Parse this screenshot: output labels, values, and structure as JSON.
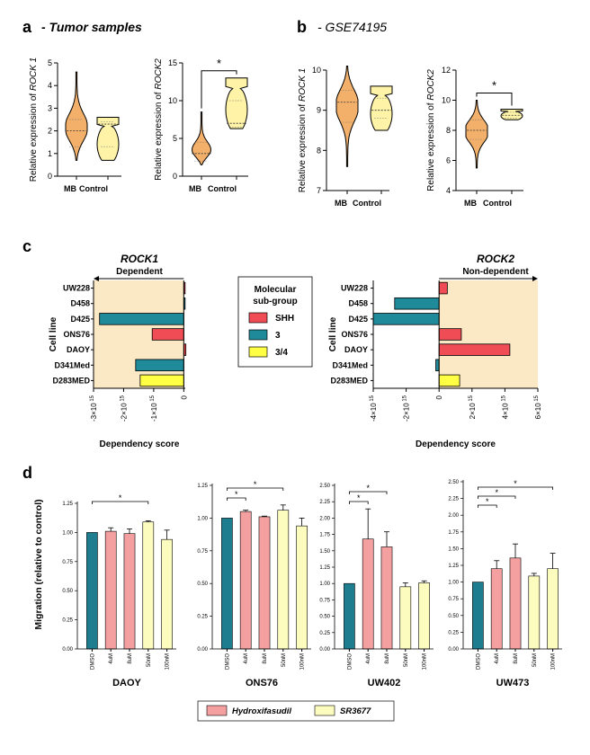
{
  "panels": {
    "a": {
      "letter": "a",
      "title": "- Tumor samples"
    },
    "b": {
      "letter": "b",
      "title": "- GSE74195"
    },
    "c": {
      "letter": "c"
    },
    "d": {
      "letter": "d"
    }
  },
  "chart_data": [
    {
      "id": "a1",
      "type": "violin",
      "ylabel_plain": "Relative expression of ",
      "ylabel_italic": "ROCK 1",
      "ylim": [
        0,
        5
      ],
      "yticks": [
        0,
        1,
        2,
        3,
        4,
        5
      ],
      "categories": [
        "MB",
        "Control"
      ],
      "series": [
        {
          "name": "MB",
          "color": "#f2b06b",
          "min": 0.7,
          "max": 4.6,
          "median": 2.0,
          "q1": 1.3,
          "q3": 2.5
        },
        {
          "name": "Control",
          "color": "#fff3a8",
          "min": 0.7,
          "max": 2.6,
          "median": 2.3,
          "q1": 1.3,
          "q3": 2.4
        }
      ]
    },
    {
      "id": "a2",
      "type": "violin",
      "ylabel_plain": "Relative expression of ",
      "ylabel_italic": "ROCK2",
      "ylim": [
        0,
        15
      ],
      "yticks": [
        0,
        5,
        10,
        15
      ],
      "categories": [
        "MB",
        "Control"
      ],
      "series": [
        {
          "name": "MB",
          "color": "#f2b06b",
          "min": 1.5,
          "max": 8.5,
          "median": 3.0,
          "q1": 2.0,
          "q3": 4.5
        },
        {
          "name": "Control",
          "color": "#fff3a8",
          "min": 6.3,
          "max": 13.0,
          "median": 7.0,
          "q1": 6.5,
          "q3": 10.0
        }
      ],
      "significance": "*"
    },
    {
      "id": "b1",
      "type": "violin",
      "ylabel_plain": "Relative expression of ",
      "ylabel_italic": "ROCK 1",
      "ylim": [
        7,
        10
      ],
      "yticks": [
        7,
        8,
        9,
        10
      ],
      "categories": [
        "MB",
        "Control"
      ],
      "series": [
        {
          "name": "MB",
          "color": "#f2b06b",
          "min": 7.6,
          "max": 10.1,
          "median": 9.2,
          "q1": 8.7,
          "q3": 9.5
        },
        {
          "name": "Control",
          "color": "#fff3a8",
          "min": 8.5,
          "max": 9.6,
          "median": 9.0,
          "q1": 8.8,
          "q3": 9.3
        }
      ]
    },
    {
      "id": "b2",
      "type": "violin",
      "ylabel_plain": "Relative expression of ",
      "ylabel_italic": "ROCK2",
      "ylim": [
        4,
        12
      ],
      "yticks": [
        4,
        6,
        8,
        10,
        12
      ],
      "categories": [
        "MB",
        "Control"
      ],
      "series": [
        {
          "name": "MB",
          "color": "#f2b06b",
          "min": 5.5,
          "max": 10.0,
          "median": 8.0,
          "q1": 7.4,
          "q3": 8.7
        },
        {
          "name": "Control",
          "color": "#fff3a8",
          "min": 8.7,
          "max": 9.4,
          "median": 9.0,
          "q1": 8.8,
          "q3": 9.2
        }
      ],
      "significance": "*"
    },
    {
      "id": "c1",
      "type": "bar-horizontal",
      "title": "ROCK1",
      "subtitle": "Dependent",
      "ylabel": "Cell line",
      "xlabel": "Dependency score",
      "xlim": [
        -3000000000000000.0,
        50000000000000.0
      ],
      "xticks": [
        {
          "v": -3000000000000000.0,
          "label": "-3×10",
          "exp": "15"
        },
        {
          "v": -2000000000000000.0,
          "label": "-2×10",
          "exp": "15"
        },
        {
          "v": -1000000000000000.0,
          "label": "-1×10",
          "exp": "15"
        },
        {
          "v": 0,
          "label": "0",
          "exp": ""
        }
      ],
      "categories": [
        "UW228",
        "D458",
        "D425",
        "ONS76",
        "DAOY",
        "D341Med",
        "D283MED"
      ],
      "values": [
        20000000000000.0,
        0.0,
        -2800000000000000.0,
        -1050000000000000.0,
        70000000000000.0,
        -1600000000000000.0,
        -1450000000000000.0
      ],
      "groups": [
        "SHH",
        "3",
        "3",
        "SHH",
        "SHH",
        "3",
        "3/4"
      ]
    },
    {
      "id": "c2",
      "type": "bar-horizontal",
      "title": "ROCK2",
      "subtitle": "Non-dependent",
      "ylabel": "Cell line",
      "xlabel": "Dependency score",
      "xlim": [
        -4000000000000000.0,
        6000000000000000.0
      ],
      "xticks": [
        {
          "v": -4000000000000000.0,
          "label": "-4×10",
          "exp": "15"
        },
        {
          "v": -2000000000000000.0,
          "label": "-2×10",
          "exp": "15"
        },
        {
          "v": 0,
          "label": "0",
          "exp": ""
        },
        {
          "v": 2000000000000000.0,
          "label": "2×10",
          "exp": "15"
        },
        {
          "v": 4000000000000000.0,
          "label": "4×10",
          "exp": "15"
        },
        {
          "v": 6000000000000000.0,
          "label": "6×10",
          "exp": "15"
        }
      ],
      "categories": [
        "UW228",
        "D458",
        "D425",
        "ONS76",
        "DAOY",
        "D341Med",
        "D283MED"
      ],
      "values": [
        500000000000000.0,
        -2700000000000000.0,
        -4000000000000000.0,
        1350000000000000.0,
        4300000000000000.0,
        -200000000000000.0,
        1250000000000000.0
      ],
      "groups": [
        "SHH",
        "3",
        "3",
        "SHH",
        "SHH",
        "3",
        "3/4"
      ]
    },
    {
      "id": "d1",
      "type": "bar",
      "title": "DAOY",
      "ylabel": "Migration  (relative to control)",
      "ylim": [
        0,
        1.25
      ],
      "yticks": [
        "0.00",
        "0.25",
        "0.50",
        "0.75",
        "1.00",
        "1.25"
      ],
      "categories": [
        "DMSO",
        "4uM",
        "8uM",
        "50nM",
        "100nM"
      ],
      "values": [
        1.0,
        1.01,
        0.99,
        1.09,
        0.94
      ],
      "errors": [
        0,
        0.03,
        0.04,
        0.01,
        0.08
      ],
      "groups": [
        "control",
        "Hydroxifasudil",
        "Hydroxifasudil",
        "SR3677",
        "SR3677"
      ],
      "significance": [
        {
          "from": 0,
          "to": 3,
          "label": "*"
        }
      ]
    },
    {
      "id": "d2",
      "type": "bar",
      "title": "ONS76",
      "ylim": [
        0,
        1.25
      ],
      "yticks": [
        "0.00",
        "0.25",
        "0.50",
        "0.75",
        "1.00",
        "1.25"
      ],
      "categories": [
        "DMSO",
        "4uM",
        "8uM",
        "50nM",
        "100nM"
      ],
      "values": [
        1.0,
        1.05,
        1.01,
        1.06,
        0.94
      ],
      "errors": [
        0,
        0.01,
        0.005,
        0.04,
        0.06
      ],
      "groups": [
        "control",
        "Hydroxifasudil",
        "Hydroxifasudil",
        "SR3677",
        "SR3677"
      ],
      "significance": [
        {
          "from": 0,
          "to": 1,
          "label": "*"
        },
        {
          "from": 0,
          "to": 3,
          "label": "*"
        }
      ]
    },
    {
      "id": "d3",
      "type": "bar",
      "title": "UW402",
      "ylim": [
        0,
        2.5
      ],
      "yticks": [
        "0.00",
        "0.25",
        "0.50",
        "0.75",
        "1.00",
        "1.25",
        "1.50",
        "1.75",
        "2.00",
        "2.25",
        "2.50"
      ],
      "categories": [
        "DMSO",
        "4uM",
        "8uM",
        "50nM",
        "100nM"
      ],
      "values": [
        1.0,
        1.68,
        1.56,
        0.95,
        1.01
      ],
      "errors": [
        0,
        0.46,
        0.23,
        0.06,
        0.03
      ],
      "groups": [
        "control",
        "Hydroxifasudil",
        "Hydroxifasudil",
        "SR3677",
        "SR3677"
      ],
      "significance": [
        {
          "from": 0,
          "to": 1,
          "label": "*"
        },
        {
          "from": 0,
          "to": 2,
          "label": "*"
        }
      ]
    },
    {
      "id": "d4",
      "type": "bar",
      "title": "UW473",
      "ylim": [
        0,
        2.5
      ],
      "yticks": [
        "0.00",
        "0.25",
        "0.50",
        "0.75",
        "1.00",
        "1.25",
        "1.50",
        "1.75",
        "2.00",
        "2.25",
        "2.50"
      ],
      "categories": [
        "DMSO",
        "4uM",
        "8uM",
        "50nM",
        "100nM"
      ],
      "values": [
        1.0,
        1.2,
        1.36,
        1.09,
        1.2
      ],
      "errors": [
        0,
        0.12,
        0.21,
        0.04,
        0.23
      ],
      "groups": [
        "control",
        "Hydroxifasudil",
        "Hydroxifasudil",
        "SR3677",
        "SR3677"
      ],
      "significance": [
        {
          "from": 0,
          "to": 1,
          "label": "*"
        },
        {
          "from": 0,
          "to": 2,
          "label": "*"
        },
        {
          "from": 0,
          "to": 4,
          "label": "*"
        }
      ]
    }
  ],
  "legend_c": {
    "title_line1": "Molecular",
    "title_line2": "sub-group",
    "items": [
      {
        "label": "SHH",
        "color": "#ef4c55"
      },
      {
        "label": "3",
        "color": "#1f8a9a"
      },
      {
        "label": "3/4",
        "color": "#ffff44"
      }
    ]
  },
  "legend_d": {
    "items": [
      {
        "label": "Hydroxifasudil",
        "color": "#f4a0a0"
      },
      {
        "label": "SR3677",
        "color": "#fdfcbf"
      }
    ]
  },
  "colors": {
    "dmso": "#1e7d8e",
    "shade": "#fbe8c4",
    "bar_shh": "#ef4c55",
    "bar_3": "#1f8a9a",
    "bar_34": "#ffff44"
  }
}
